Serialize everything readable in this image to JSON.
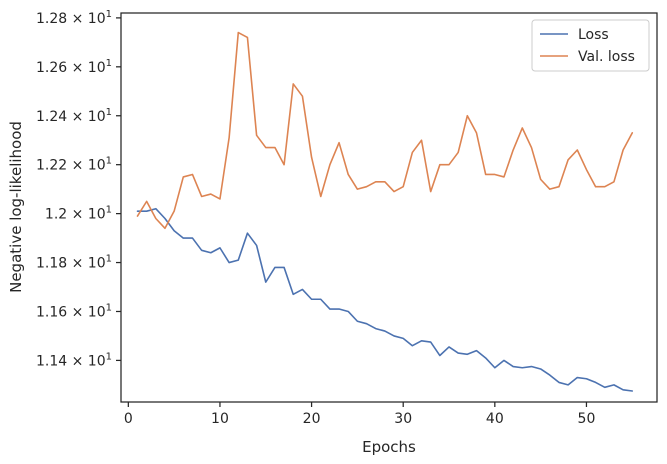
{
  "chart_data": {
    "type": "line",
    "title": "",
    "xlabel": "Epochs",
    "ylabel": "Negative log-likelihood",
    "xlim": [
      -0.8,
      57.7
    ],
    "ylim": [
      11.23,
      12.82
    ],
    "grid": false,
    "legend_position": "top-right",
    "x_ticks": [
      {
        "value": 0,
        "label": "0"
      },
      {
        "value": 10,
        "label": "10"
      },
      {
        "value": 20,
        "label": "20"
      },
      {
        "value": 30,
        "label": "30"
      },
      {
        "value": 40,
        "label": "40"
      },
      {
        "value": 50,
        "label": "50"
      }
    ],
    "y_ticks": [
      {
        "value": 11.4,
        "mantissa": "1.14",
        "base": "10",
        "exp": "1"
      },
      {
        "value": 11.6,
        "mantissa": "1.16",
        "base": "10",
        "exp": "1"
      },
      {
        "value": 11.8,
        "mantissa": "1.18",
        "base": "10",
        "exp": "1"
      },
      {
        "value": 12.0,
        "mantissa": "1.2",
        "base": "10",
        "exp": "1"
      },
      {
        "value": 12.2,
        "mantissa": "1.22",
        "base": "10",
        "exp": "1"
      },
      {
        "value": 12.4,
        "mantissa": "1.24",
        "base": "10",
        "exp": "1"
      },
      {
        "value": 12.6,
        "mantissa": "1.26",
        "base": "10",
        "exp": "1"
      },
      {
        "value": 12.8,
        "mantissa": "1.28",
        "base": "10",
        "exp": "1"
      }
    ],
    "x": [
      1,
      2,
      3,
      4,
      5,
      6,
      7,
      8,
      9,
      10,
      11,
      12,
      13,
      14,
      15,
      16,
      17,
      18,
      19,
      20,
      21,
      22,
      23,
      24,
      25,
      26,
      27,
      28,
      29,
      30,
      31,
      32,
      33,
      34,
      35,
      36,
      37,
      38,
      39,
      40,
      41,
      42,
      43,
      44,
      45,
      46,
      47,
      48,
      49,
      50,
      51,
      52,
      53,
      54,
      55
    ],
    "series": [
      {
        "name": "Loss",
        "color": "#4c72b0",
        "values": [
          12.01,
          12.01,
          12.02,
          11.98,
          11.93,
          11.9,
          11.9,
          11.85,
          11.84,
          11.86,
          11.8,
          11.81,
          11.92,
          11.87,
          11.72,
          11.78,
          11.78,
          11.67,
          11.69,
          11.65,
          11.65,
          11.61,
          11.61,
          11.6,
          11.56,
          11.55,
          11.53,
          11.52,
          11.5,
          11.49,
          11.46,
          11.48,
          11.475,
          11.42,
          11.455,
          11.43,
          11.425,
          11.44,
          11.41,
          11.37,
          11.4,
          11.375,
          11.37,
          11.375,
          11.365,
          11.34,
          11.31,
          11.3,
          11.33,
          11.325,
          11.31,
          11.29,
          11.3,
          11.28,
          11.275
        ]
      },
      {
        "name": "Val. loss",
        "color": "#dd8452",
        "values": [
          11.99,
          12.05,
          11.98,
          11.94,
          12.01,
          12.15,
          12.16,
          12.07,
          12.08,
          12.06,
          12.31,
          12.74,
          12.72,
          12.32,
          12.27,
          12.27,
          12.2,
          12.53,
          12.48,
          12.23,
          12.07,
          12.2,
          12.29,
          12.16,
          12.1,
          12.11,
          12.13,
          12.13,
          12.09,
          12.11,
          12.25,
          12.3,
          12.09,
          12.2,
          12.2,
          12.25,
          12.4,
          12.33,
          12.16,
          12.16,
          12.15,
          12.26,
          12.35,
          12.27,
          12.14,
          12.1,
          12.11,
          12.22,
          12.26,
          12.18,
          12.11,
          12.11,
          12.13,
          12.26,
          12.33
        ]
      }
    ]
  }
}
